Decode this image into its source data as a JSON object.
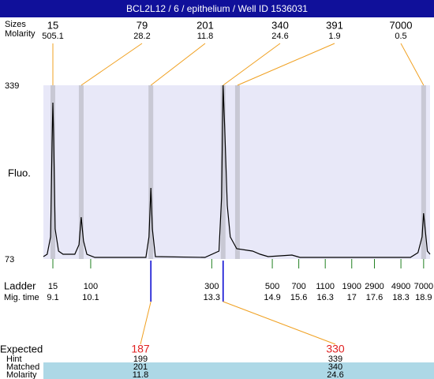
{
  "chart_data": {
    "type": "electropherogram",
    "title": "BCL2L12 / 6 / epithelium / Well ID 1536031",
    "labels": {
      "sizes": "Sizes",
      "molarity": "Molarity",
      "fluo": "Fluo.",
      "ladder": "Ladder",
      "mig_time": "Mig. time",
      "expected": "Expected",
      "hint": "Hint",
      "matched": "Matched",
      "matched_molarity": "Molarity"
    },
    "xlim": [
      8.85,
      19.07
    ],
    "ylim": [
      73,
      339
    ],
    "yticks": [
      73,
      339
    ],
    "peaks": [
      {
        "size": 15,
        "molarity": 505.1,
        "time": 9.1
      },
      {
        "size": 79,
        "molarity": 28.2,
        "time": 9.85
      },
      {
        "size": 201,
        "molarity": 11.8,
        "time": 11.69
      },
      {
        "size": 340,
        "molarity": 24.6,
        "time": 13.6
      },
      {
        "size": 391,
        "molarity": 1.9,
        "time": 13.98
      },
      {
        "size": 7000,
        "molarity": 0.5,
        "time": 18.9
      }
    ],
    "ladder": [
      {
        "size": 15,
        "time": 9.1
      },
      {
        "size": 100,
        "time": 10.1
      },
      {
        "size": 300,
        "time": 13.3
      },
      {
        "size": 500,
        "time": 14.9
      },
      {
        "size": 700,
        "time": 15.6
      },
      {
        "size": 1100,
        "time": 16.3
      },
      {
        "size": 1900,
        "time": 17
      },
      {
        "size": 2900,
        "time": 17.6
      },
      {
        "size": 4900,
        "time": 18.3
      },
      {
        "size": 7000,
        "time": 18.9
      }
    ],
    "expected": [
      {
        "expected": 187,
        "hint": 199,
        "matched": 201,
        "molarity": 11.8,
        "time": 11.69
      },
      {
        "expected": 330,
        "hint": 339,
        "matched": 340,
        "molarity": 24.6,
        "time": 13.6
      }
    ],
    "trace": {
      "x": [
        8.85,
        8.95,
        9.04,
        9.08,
        9.1,
        9.12,
        9.16,
        9.25,
        9.37,
        9.68,
        9.79,
        9.85,
        9.91,
        10.0,
        10.21,
        11.56,
        11.64,
        11.69,
        11.73,
        11.81,
        13.12,
        13.49,
        13.56,
        13.6,
        13.64,
        13.71,
        13.79,
        13.96,
        14.38,
        14.58,
        14.79,
        15.42,
        15.63,
        18.55,
        18.75,
        18.86,
        18.9,
        18.94,
        19.0,
        19.07
      ],
      "y": [
        76.6,
        80.3,
        106.9,
        251.9,
        312.4,
        264.0,
        118.9,
        85.1,
        80.3,
        80.3,
        94.8,
        137.1,
        100.8,
        80.3,
        75.4,
        75.4,
        106.9,
        181.8,
        118.9,
        76.6,
        75.4,
        85.1,
        167.3,
        339,
        276.1,
        155.2,
        106.9,
        88.7,
        85.1,
        80.3,
        76.6,
        79.0,
        75.4,
        75.4,
        82.7,
        106.9,
        143.1,
        118.9,
        85.1,
        80.3
      ]
    }
  }
}
